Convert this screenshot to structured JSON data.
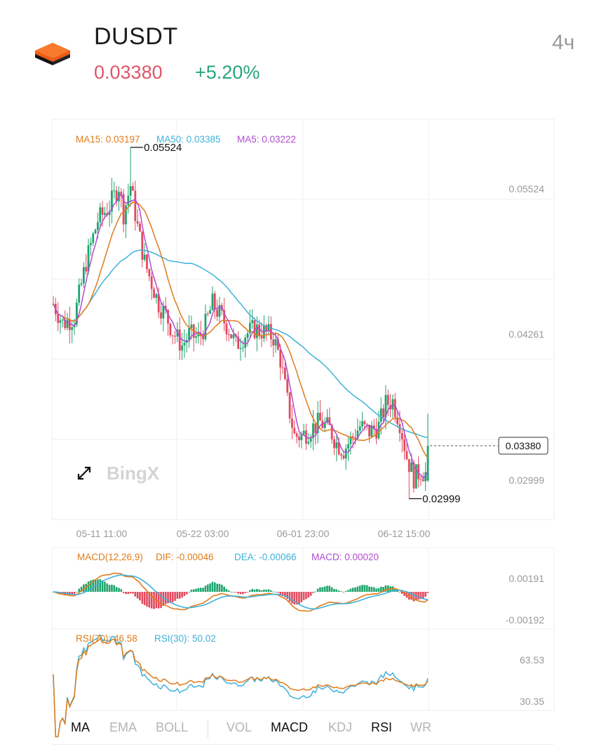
{
  "header": {
    "symbol": "DUSDT",
    "price": "0.03380",
    "change": "+5.20%",
    "timeframe": "4ч",
    "price_color": "#e0556a",
    "change_color": "#27a67a",
    "logo_icon": "orange-black-stack-icon"
  },
  "colors": {
    "up": "#1fa46d",
    "down": "#e2495f",
    "ma15": "#e07b1a",
    "ma50": "#3fb1d9",
    "ma5": "#b34bd1",
    "grid": "#efefef"
  },
  "watermark": {
    "text": "BingX",
    "expand_icon": "expand-arrows-icon"
  },
  "tabs": {
    "items": [
      "MA",
      "EMA",
      "BOLL",
      "VOL",
      "MACD",
      "KDJ",
      "RSI",
      "WR"
    ],
    "active": [
      "MA",
      "MACD",
      "RSI"
    ]
  },
  "chart_data": [
    {
      "type": "candlestick",
      "legend": [
        {
          "label": "MA15:",
          "value": "0.03197"
        },
        {
          "label": "MA50:",
          "value": "0.03385"
        },
        {
          "label": "MA5:",
          "value": "0.03222"
        }
      ],
      "y_ticks": [
        "0.05524",
        "0.04261",
        "0.02999"
      ],
      "ylim": [
        0.029,
        0.057
      ],
      "x_ticks": [
        "05-11 11:00",
        "05-22 03:00",
        "06-01 23:00",
        "06-12 15:00"
      ],
      "high_marker": "0.05524",
      "low_marker": "0.02999",
      "last_price_tag": "0.03380",
      "close_path": [
        [
          0,
          0.044
        ],
        [
          4,
          0.0426
        ],
        [
          9,
          0.043
        ],
        [
          14,
          0.047
        ],
        [
          19,
          0.05
        ],
        [
          24,
          0.051
        ],
        [
          28,
          0.0525
        ],
        [
          30,
          0.0505
        ],
        [
          33,
          0.0525
        ],
        [
          36,
          0.0495
        ],
        [
          39,
          0.047
        ],
        [
          42,
          0.0455
        ],
        [
          45,
          0.044
        ],
        [
          48,
          0.0432
        ],
        [
          51,
          0.042
        ],
        [
          55,
          0.041
        ],
        [
          58,
          0.0418
        ],
        [
          62,
          0.0415
        ],
        [
          65,
          0.0425
        ],
        [
          68,
          0.044
        ],
        [
          72,
          0.043
        ],
        [
          75,
          0.0422
        ],
        [
          78,
          0.041
        ],
        [
          82,
          0.0418
        ],
        [
          86,
          0.0422
        ],
        [
          90,
          0.042
        ],
        [
          94,
          0.0416
        ],
        [
          97,
          0.04
        ],
        [
          100,
          0.037
        ],
        [
          103,
          0.0345
        ],
        [
          106,
          0.0345
        ],
        [
          110,
          0.035
        ],
        [
          114,
          0.0355
        ],
        [
          118,
          0.035
        ],
        [
          121,
          0.034
        ],
        [
          124,
          0.0335
        ],
        [
          127,
          0.0342
        ],
        [
          131,
          0.0352
        ],
        [
          135,
          0.0348
        ],
        [
          139,
          0.0352
        ],
        [
          142,
          0.0368
        ],
        [
          145,
          0.037
        ],
        [
          148,
          0.0355
        ],
        [
          151,
          0.033
        ],
        [
          154,
          0.0315
        ],
        [
          157,
          0.032
        ],
        [
          159,
          0.0318
        ],
        [
          160,
          0.0338
        ]
      ],
      "ma15_last": 0.03197,
      "ma50_last": 0.03385,
      "ma5_last": 0.03222
    },
    {
      "type": "macd",
      "legend": [
        {
          "label": "MACD(12,26,9)",
          "value": ""
        },
        {
          "label": "DIF:",
          "value": "-0.00046"
        },
        {
          "label": "DEA:",
          "value": "-0.00066"
        },
        {
          "label": "MACD:",
          "value": "0.00020"
        }
      ],
      "y_ticks": [
        "0.00191",
        "-0.00192"
      ],
      "ylim": [
        -0.0025,
        0.0025
      ]
    },
    {
      "type": "rsi",
      "legend": [
        {
          "label": "RSI(70):",
          "value": "46.58"
        },
        {
          "label": "RSI(30):",
          "value": "50.02"
        }
      ],
      "y_ticks": [
        "63.53",
        "30.35"
      ],
      "ylim": [
        25,
        70
      ]
    }
  ]
}
